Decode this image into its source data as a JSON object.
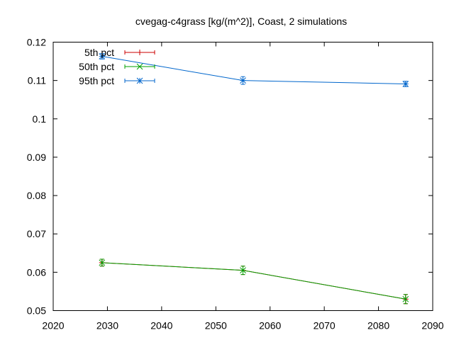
{
  "chart_data": {
    "type": "line",
    "title": "cvegag-c4grass [kg/(m^2)], Coast, 2 simulations",
    "xlabel": "",
    "ylabel": "",
    "xlim": [
      2020,
      2090
    ],
    "ylim": [
      0.05,
      0.12
    ],
    "x_ticks": [
      "2020",
      "2030",
      "2040",
      "2050",
      "2060",
      "2070",
      "2080",
      "2090"
    ],
    "y_ticks": [
      "0.05",
      "0.06",
      "0.07",
      "0.08",
      "0.09",
      "0.1",
      "0.11",
      "0.12"
    ],
    "x_tick_values": [
      2020,
      2030,
      2040,
      2050,
      2060,
      2070,
      2080,
      2090
    ],
    "y_tick_values": [
      0.05,
      0.06,
      0.07,
      0.08,
      0.09,
      0.1,
      0.11,
      0.12
    ],
    "x": [
      2029,
      2055,
      2085
    ],
    "legend_position": "top-left",
    "series": [
      {
        "name": "5th pct",
        "color": "#cc0000",
        "marker": "plus",
        "values": [
          0.0625,
          0.0605,
          0.053
        ],
        "err_low": [
          0.0616,
          0.0594,
          0.0518
        ],
        "err_high": [
          0.0634,
          0.0616,
          0.0542
        ]
      },
      {
        "name": "50th pct",
        "color": "#00a000",
        "marker": "cross",
        "values": [
          0.0625,
          0.0605,
          0.053
        ],
        "err_low": [
          0.0616,
          0.0594,
          0.0518
        ],
        "err_high": [
          0.0634,
          0.0616,
          0.0542
        ]
      },
      {
        "name": "95th pct",
        "color": "#0066cc",
        "marker": "star",
        "values": [
          0.1163,
          0.11,
          0.1091
        ],
        "err_low": [
          0.1156,
          0.109,
          0.1084
        ],
        "err_high": [
          0.117,
          0.111,
          0.1098
        ]
      }
    ]
  }
}
